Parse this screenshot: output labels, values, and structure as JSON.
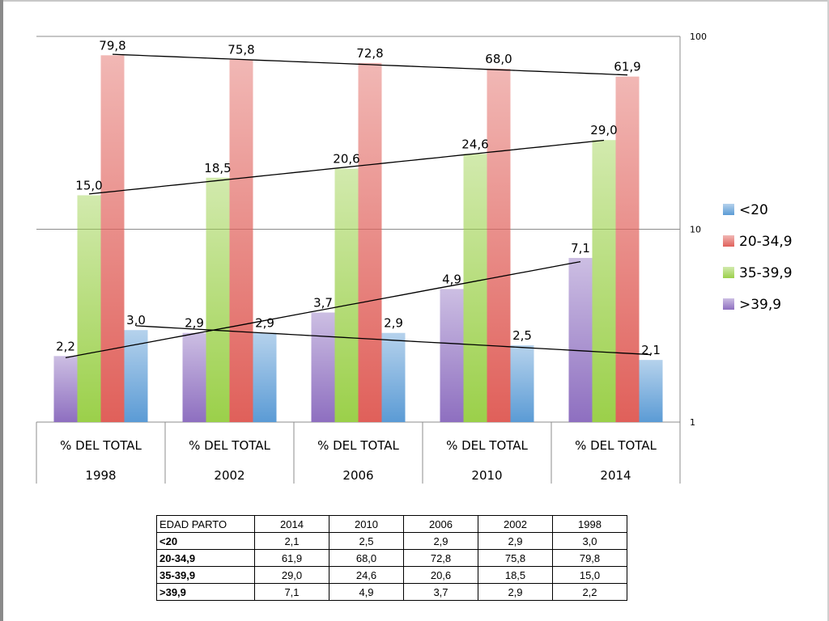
{
  "chart_data": {
    "type": "bar",
    "scale": "log",
    "ylim": [
      1,
      100
    ],
    "yticks": [
      "1",
      "10",
      "100"
    ],
    "axis_position": "right",
    "grid": true,
    "legend_position": "right",
    "categories": [
      {
        "line1": "% DEL TOTAL",
        "line2": "1998"
      },
      {
        "line1": "% DEL TOTAL",
        "line2": "2002"
      },
      {
        "line1": "% DEL TOTAL",
        "line2": "2006"
      },
      {
        "line1": "% DEL TOTAL",
        "line2": "2010"
      },
      {
        "line1": "% DEL TOTAL",
        "line2": "2014"
      }
    ],
    "bar_order": [
      ">39,9",
      "35-39,9",
      "20-34,9",
      "<20"
    ],
    "legend_order": [
      "<20",
      "20-34,9",
      "35-39,9",
      ">39,9"
    ],
    "series": [
      {
        "name": "<20",
        "color": "#5b9bd5",
        "values": [
          3.0,
          2.9,
          2.9,
          2.5,
          2.1
        ],
        "labels": [
          "3,0",
          "2,9",
          "2,9",
          "2,5",
          "2,1"
        ]
      },
      {
        "name": "20-34,9",
        "color": "#e0605a",
        "values": [
          79.8,
          75.8,
          72.8,
          68.0,
          61.9
        ],
        "labels": [
          "79,8",
          "75,8",
          "72,8",
          "68,0",
          "61,9"
        ]
      },
      {
        "name": "35-39,9",
        "color": "#9bd04a",
        "values": [
          15.0,
          18.5,
          20.6,
          24.6,
          29.0
        ],
        "labels": [
          "15,0",
          "18,5",
          "20,6",
          "24,6",
          "29,0"
        ]
      },
      {
        "name": ">39,9",
        "color": "#8e6fc0",
        "values": [
          2.2,
          2.9,
          3.7,
          4.9,
          7.1
        ],
        "labels": [
          "2,2",
          "2,9",
          "3,7",
          "4,9",
          "7,1"
        ]
      }
    ],
    "trendlines": true
  },
  "table": {
    "header": [
      "EDAD PARTO",
      "2014",
      "2010",
      "2006",
      "2002",
      "1998"
    ],
    "rows": [
      [
        "<20",
        "2,1",
        "2,5",
        "2,9",
        "2,9",
        "3,0"
      ],
      [
        "20-34,9",
        "61,9",
        "68,0",
        "72,8",
        "75,8",
        "79,8"
      ],
      [
        "35-39,9",
        "29,0",
        "24,6",
        "20,6",
        "18,5",
        "15,0"
      ],
      [
        ">39,9",
        "7,1",
        "4,9",
        "3,7",
        "2,9",
        "2,2"
      ]
    ]
  }
}
